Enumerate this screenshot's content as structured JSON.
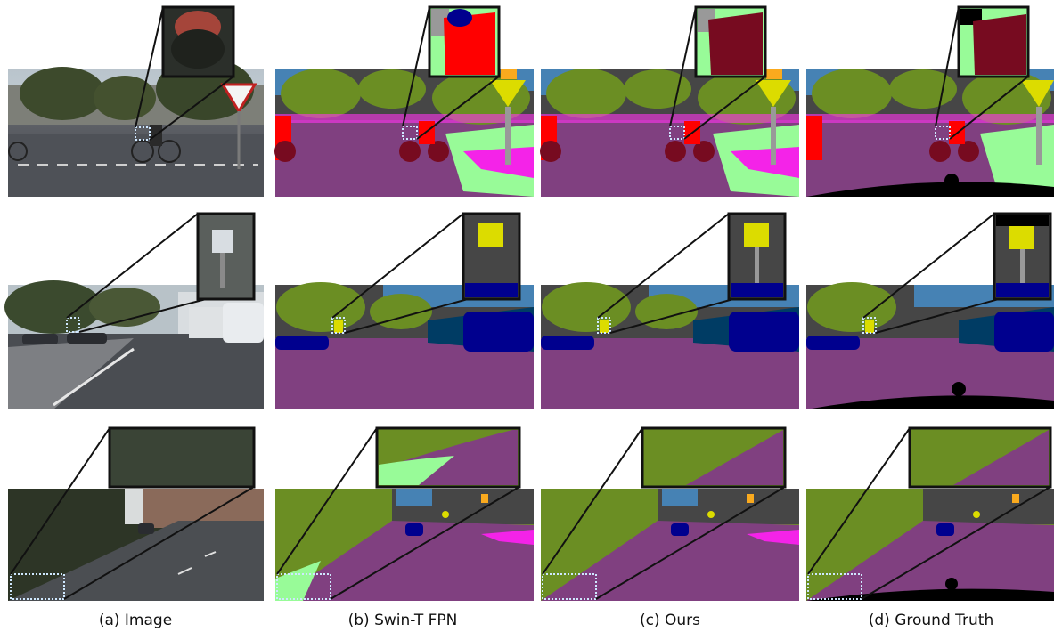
{
  "figure": {
    "captions": [
      "(a) Image",
      "(b) Swin-T FPN",
      "(c) Ours",
      "(d) Ground Truth"
    ],
    "rows": [
      {
        "scene": "intersection-cyclist"
      },
      {
        "scene": "street-traffic-sign"
      },
      {
        "scene": "road-vegetation-embankment"
      }
    ],
    "colors": {
      "road": "#804080",
      "sidewalk": "#f423e8",
      "building": "#464646",
      "vegetation": "#6b8e23",
      "terrain": "#98fb98",
      "sky": "#4682b4",
      "person": "#dc143c",
      "rider": "#ff0000",
      "car": "#00008e",
      "truck": "#003c64",
      "bicycle": "#770b20",
      "pole": "#999999",
      "traffic_light": "#faaa1e",
      "traffic_sign": "#dcdc00",
      "void": "#000000",
      "zoom_border": "#111111",
      "roi_box": "#cfe8ff"
    }
  }
}
